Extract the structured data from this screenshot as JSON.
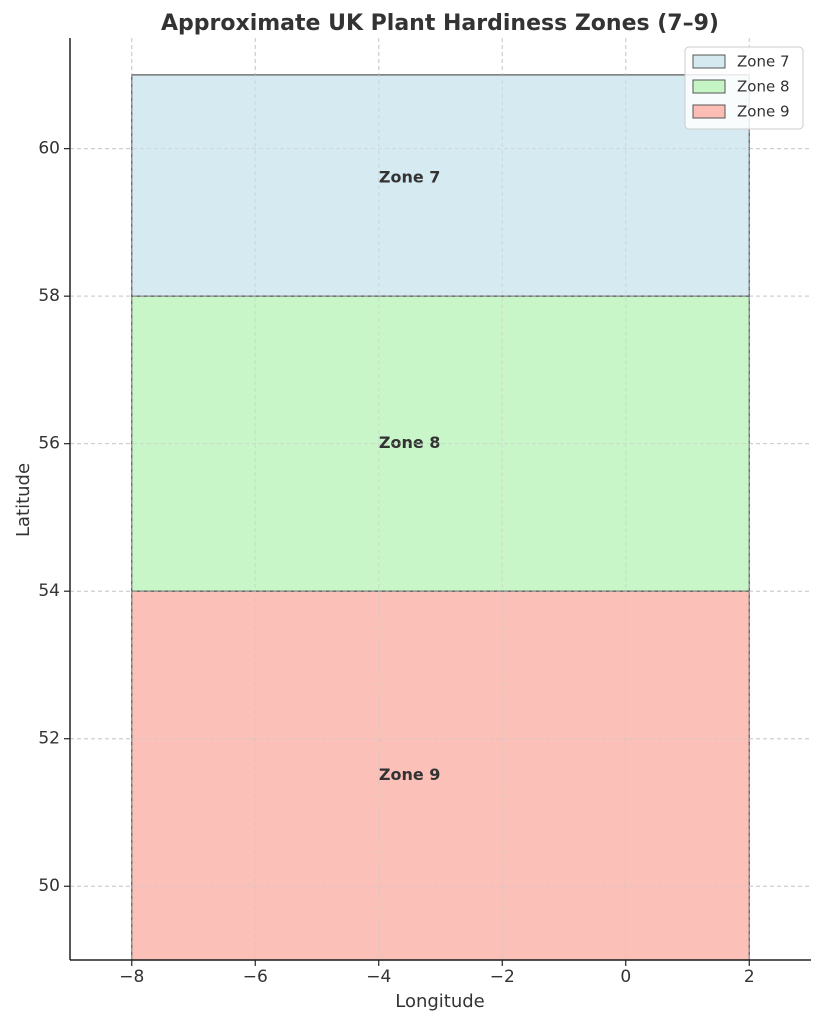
{
  "chart_data": {
    "type": "area",
    "title": "Approximate UK Plant Hardiness Zones (7–9)",
    "xlabel": "Longitude",
    "ylabel": "Latitude",
    "xlim": [
      -9,
      3
    ],
    "ylim": [
      49,
      61.5
    ],
    "xticks": [
      -8,
      -6,
      -4,
      -2,
      0,
      2
    ],
    "xtick_labels": [
      "−8",
      "−6",
      "−4",
      "−2",
      "0",
      "2"
    ],
    "yticks": [
      50,
      52,
      54,
      56,
      58,
      60
    ],
    "ytick_labels": [
      "50",
      "52",
      "54",
      "56",
      "58",
      "60"
    ],
    "grid": true,
    "legend_position": "top-right",
    "series": [
      {
        "name": "Zone 7",
        "label": "Zone 7",
        "lon": [
          -8,
          2
        ],
        "lat": [
          58,
          61
        ],
        "label_at": [
          -3.5,
          59.6
        ],
        "color": "#d4e9f0"
      },
      {
        "name": "Zone 8",
        "label": "Zone 8",
        "lon": [
          -8,
          2
        ],
        "lat": [
          54,
          58
        ],
        "label_at": [
          -3.5,
          56
        ],
        "color": "#c6f5c5"
      },
      {
        "name": "Zone 9",
        "label": "Zone 9",
        "lon": [
          -8,
          2
        ],
        "lat": [
          49,
          54
        ],
        "label_at": [
          -3.5,
          51.5
        ],
        "color": "#fbbdb4"
      }
    ]
  }
}
